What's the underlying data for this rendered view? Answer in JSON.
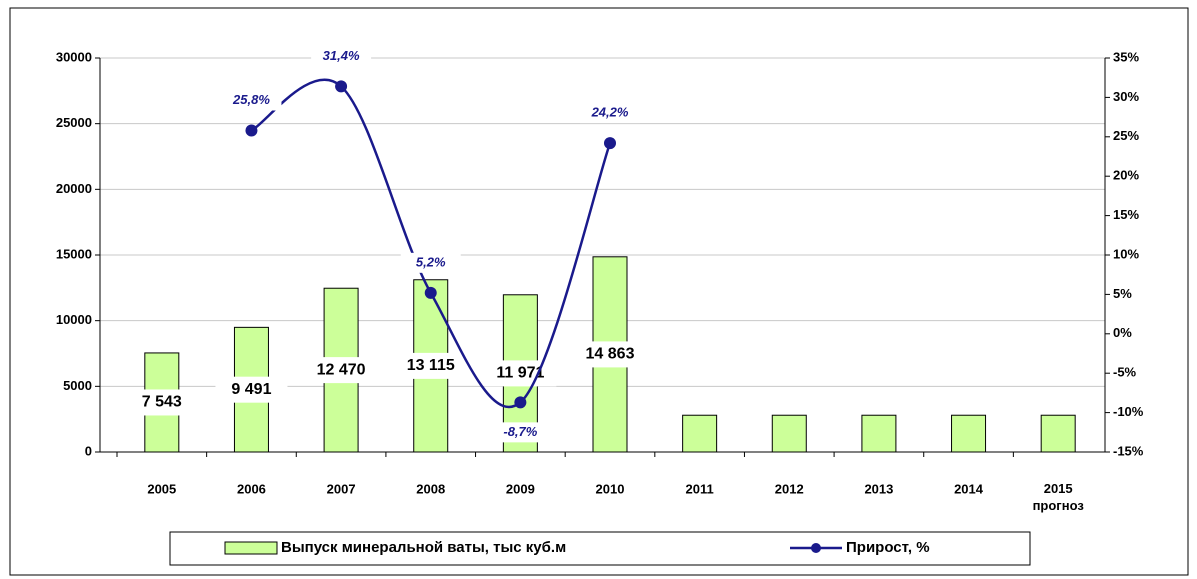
{
  "chart_data": {
    "type": "bar_line",
    "categories": [
      "2005",
      "2006",
      "2007",
      "2008",
      "2009",
      "2010",
      "2011",
      "2012",
      "2013",
      "2014",
      "2015 прогноз"
    ],
    "series": [
      {
        "name": "Выпуск минеральной ваты, тыс куб.м",
        "type": "bar",
        "color": "#ccff99",
        "values": [
          7543,
          9491,
          12470,
          13115,
          11971,
          14863,
          2800,
          2800,
          2800,
          2800,
          2800
        ],
        "value_labels": [
          "7 543",
          "9 491",
          "12 470",
          "13 115",
          "11 971",
          "14 863",
          null,
          null,
          null,
          null,
          null
        ]
      },
      {
        "name": "Прирост, %",
        "type": "line",
        "axis": "y2",
        "color": "#1a1a8c",
        "values": [
          null,
          25.8,
          31.4,
          5.2,
          -8.7,
          24.2,
          null,
          null,
          null,
          null,
          null
        ],
        "value_labels": [
          null,
          "25,8%",
          "31,4%",
          "5,2%",
          "-8,7%",
          "24,2%",
          null,
          null,
          null,
          null,
          null
        ]
      }
    ],
    "ylim": [
      0,
      30000
    ],
    "yticks": [
      0,
      5000,
      10000,
      15000,
      20000,
      25000,
      30000
    ],
    "y2lim": [
      -15,
      35
    ],
    "y2ticks": [
      {
        "value": -15,
        "label": "-15%"
      },
      {
        "value": -10,
        "label": "-10%"
      },
      {
        "value": -5,
        "label": "-5%"
      },
      {
        "value": 0,
        "label": "0%"
      },
      {
        "value": 5,
        "label": "5%"
      },
      {
        "value": 10,
        "label": "10%"
      },
      {
        "value": 15,
        "label": "15%"
      },
      {
        "value": 20,
        "label": "20%"
      },
      {
        "value": 25,
        "label": "25%"
      },
      {
        "value": 30,
        "label": "30%"
      },
      {
        "value": 35,
        "label": "35%"
      }
    ],
    "grid": true,
    "legend": "bottom"
  }
}
